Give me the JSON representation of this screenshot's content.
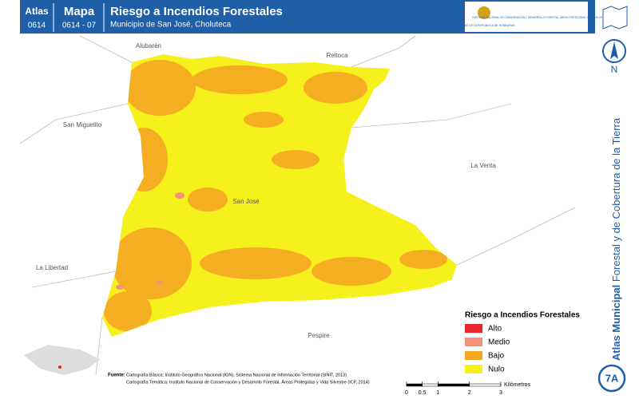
{
  "header": {
    "atlas_label": "Atlas",
    "atlas_code": "0614",
    "mapa_label": "Mapa",
    "mapa_code": "0614 - 07",
    "title": "Riesgo a Incendios Forestales",
    "subtitle": "Municipio de San José, Choluteca",
    "logo_left": "GOBIERNO DE LA REPÚBLICA DE HONDURAS",
    "logo_right": "INSTITUTO NACIONAL DE CONSERVACIÓN Y DESARROLLO FORESTAL ÁREAS PROTEGIDAS Y VIDA SILVESTRE ICF"
  },
  "places": [
    "Alubarén",
    "Reitoca",
    "San Miguelito",
    "La Venta",
    "San José",
    "La Libertad",
    "Pespire"
  ],
  "side": {
    "title_bold": "Atlas Municipal",
    "title": "Forestal y de Cobertura de la Tierra",
    "north": "N",
    "badge": "7A"
  },
  "legend": {
    "title": "Riesgo a Incendios Forestales",
    "items": [
      {
        "label": "Alto",
        "color": "#e8262a"
      },
      {
        "label": "Medio",
        "color": "#f4917a"
      },
      {
        "label": "Bajo",
        "color": "#f5a623"
      },
      {
        "label": "Nulo",
        "color": "#f6f01c"
      }
    ]
  },
  "scale": {
    "ticks": [
      0,
      0.5,
      1,
      2,
      3
    ],
    "unit": "Kilómetros"
  },
  "sources": {
    "label": "Fuente:",
    "lines": [
      "Cartografía Básica: Instituto Geográfico Nacional (IGN), Sistema Nacional de Información Territorial (SINIT, 2013)",
      "Cartografía Temática: Instituto Nacional de Conservación y Desarrollo Forestal, Áreas Protegidas y Vida Silvestre (ICF, 2014)"
    ]
  }
}
